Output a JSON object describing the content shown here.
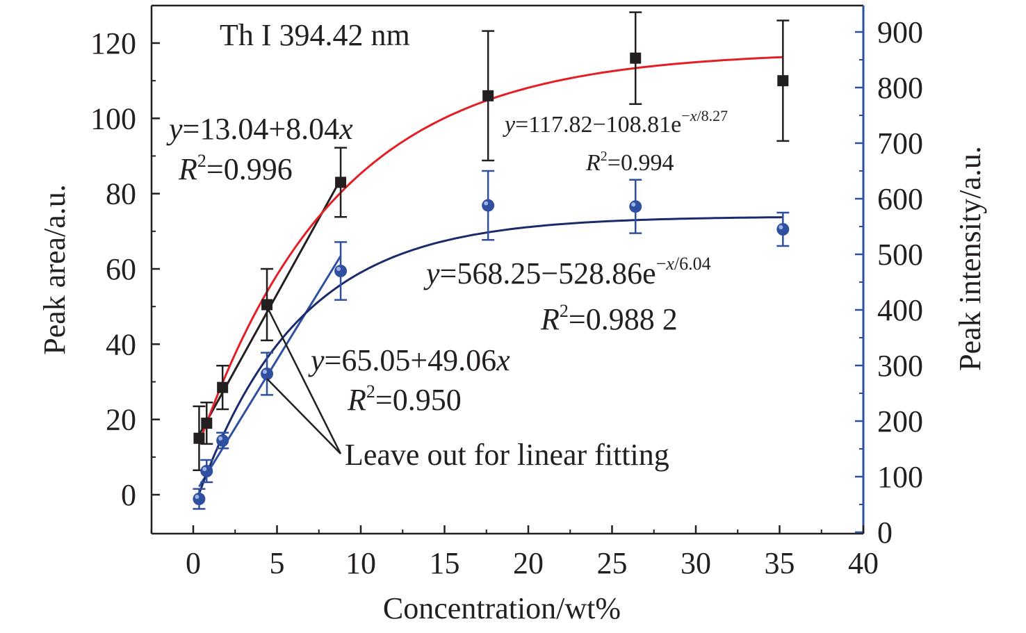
{
  "chart_data": {
    "type": "scatter",
    "title": "Th I 394.42 nm",
    "xlabel": "Concentration/wt%",
    "ylabel_left": "Peak area/a.u.",
    "ylabel_right": "Peak intensity/a.u.",
    "xlim": [
      -2.5,
      40
    ],
    "ylim_left": [
      -10,
      130
    ],
    "ylim_right": [
      0,
      950
    ],
    "x_ticks": [
      0,
      5,
      10,
      15,
      20,
      25,
      30,
      35,
      40
    ],
    "y_left_ticks": [
      0,
      20,
      40,
      60,
      80,
      100,
      120
    ],
    "y_right_ticks": [
      0,
      100,
      200,
      300,
      400,
      500,
      600,
      700,
      800,
      900
    ],
    "grid": false,
    "colors": {
      "area": "#231f20",
      "intensity": "#2f4fa0",
      "area_fit_exp": "#e31e24",
      "intensity_fit_exp": "#1b2a6b",
      "right_axis": "#2f4fa0"
    },
    "series": [
      {
        "key": "area",
        "axis": "left",
        "marker": "square",
        "x": [
          0.35,
          0.8,
          1.75,
          4.4,
          8.8,
          17.6,
          26.4,
          35.2
        ],
        "y": [
          15,
          19,
          28.5,
          50.5,
          83,
          106,
          116,
          110
        ],
        "err": [
          8.5,
          5.5,
          5.8,
          9.5,
          9.2,
          17.2,
          12.2,
          16
        ]
      },
      {
        "key": "intensity",
        "axis": "right",
        "marker": "circle",
        "x": [
          0.35,
          0.8,
          1.75,
          4.4,
          8.8,
          17.6,
          26.4,
          35.2
        ],
        "y": [
          60,
          110,
          165,
          285,
          470,
          588,
          586,
          545
        ],
        "err": [
          18,
          20,
          14,
          38,
          52,
          62,
          48,
          30
        ]
      }
    ],
    "fits": [
      {
        "key": "area_linear",
        "axis": "left",
        "x": [
          0.35,
          8.8
        ],
        "y": [
          15.9,
          83.8
        ]
      },
      {
        "key": "intensity_linear",
        "axis": "right",
        "x": [
          0.35,
          8.8
        ],
        "y": [
          82,
          497
        ]
      },
      {
        "key": "area_exp",
        "axis": "left",
        "a": 117.82,
        "b": 108.81,
        "t": 8.27,
        "xrange": [
          0.35,
          35.2
        ]
      },
      {
        "key": "intensity_exp",
        "axis": "right",
        "a": 568.25,
        "b": 528.86,
        "t": 6.04,
        "xrange": [
          0.35,
          35.2
        ]
      }
    ],
    "annotations": {
      "area_linear_eq": "y=13.04+8.04x",
      "area_linear_r2": "R2=0.996",
      "area_exp_eq": "y=117.82−108.81e−x/8.27",
      "area_exp_r2": "R2=0.994",
      "intensity_exp_eq": "y=568.25−528.86e−x/6.04",
      "intensity_exp_r2": "R2=0.988 2",
      "intensity_linear_eq": "y=65.05+49.06x",
      "intensity_linear_r2": "R2=0.950",
      "leave_out_note": "Leave out for linear fitting"
    }
  }
}
